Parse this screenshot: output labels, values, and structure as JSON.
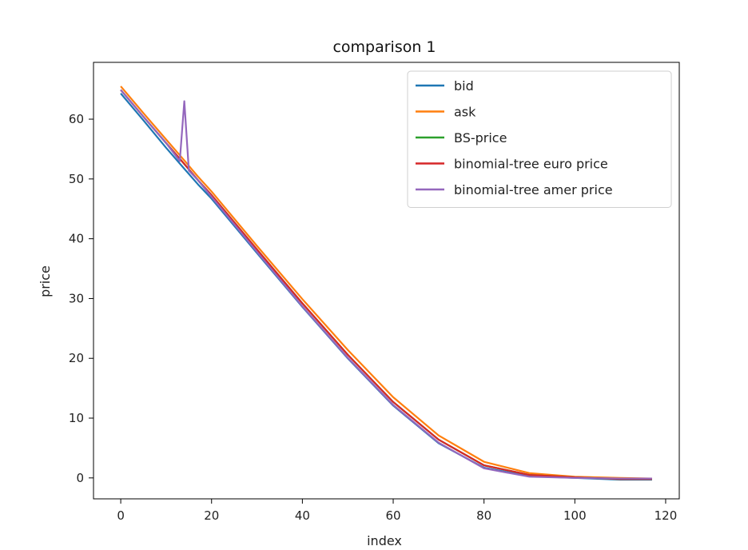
{
  "chart_data": {
    "type": "line",
    "title": "comparison 1",
    "xlabel": "index",
    "ylabel": "price",
    "xlim": [
      -6,
      123
    ],
    "ylim": [
      -3.5,
      69.5
    ],
    "xticks": [
      0,
      20,
      40,
      60,
      80,
      100,
      120
    ],
    "yticks": [
      0,
      10,
      20,
      30,
      40,
      50,
      60
    ],
    "grid": false,
    "legend_position": "top-right",
    "series": [
      {
        "name": "bid",
        "color": "#1f77b4",
        "points": [
          [
            0,
            64.3
          ],
          [
            5,
            59.8
          ],
          [
            10,
            55.2
          ],
          [
            14,
            51.7
          ],
          [
            17,
            49.1
          ],
          [
            20,
            46.7
          ],
          [
            30,
            37.6
          ],
          [
            40,
            28.6
          ],
          [
            50,
            20.0
          ],
          [
            60,
            12.1
          ],
          [
            70,
            5.8
          ],
          [
            80,
            1.7
          ],
          [
            90,
            0.3
          ],
          [
            100,
            0.0
          ],
          [
            110,
            -0.3
          ],
          [
            117,
            -0.3
          ]
        ]
      },
      {
        "name": "ask",
        "color": "#ff7f0e",
        "points": [
          [
            0,
            65.5
          ],
          [
            5,
            61.0
          ],
          [
            10,
            56.6
          ],
          [
            14,
            53.1
          ],
          [
            17,
            50.4
          ],
          [
            20,
            47.9
          ],
          [
            30,
            38.8
          ],
          [
            40,
            29.9
          ],
          [
            50,
            21.4
          ],
          [
            60,
            13.5
          ],
          [
            70,
            7.1
          ],
          [
            80,
            2.7
          ],
          [
            90,
            0.8
          ],
          [
            100,
            0.2
          ],
          [
            110,
            0.0
          ],
          [
            117,
            -0.1
          ]
        ]
      },
      {
        "name": "BS-price",
        "color": "#2ca02c",
        "points": [
          [
            0,
            64.9
          ],
          [
            5,
            60.4
          ],
          [
            10,
            56.0
          ],
          [
            14,
            52.5
          ],
          [
            17,
            49.8
          ],
          [
            20,
            47.3
          ],
          [
            30,
            38.2
          ],
          [
            40,
            29.2
          ],
          [
            50,
            20.6
          ],
          [
            60,
            12.7
          ],
          [
            70,
            6.4
          ],
          [
            80,
            2.1
          ],
          [
            90,
            0.5
          ],
          [
            100,
            0.1
          ],
          [
            110,
            -0.2
          ],
          [
            117,
            -0.2
          ]
        ]
      },
      {
        "name": "binomial-tree euro price",
        "color": "#d62728",
        "points": [
          [
            0,
            64.9
          ],
          [
            5,
            60.4
          ],
          [
            10,
            56.0
          ],
          [
            14,
            52.5
          ],
          [
            17,
            49.8
          ],
          [
            20,
            47.3
          ],
          [
            30,
            38.2
          ],
          [
            40,
            29.2
          ],
          [
            50,
            20.6
          ],
          [
            60,
            12.7
          ],
          [
            70,
            6.4
          ],
          [
            80,
            2.1
          ],
          [
            90,
            0.5
          ],
          [
            100,
            0.1
          ],
          [
            110,
            -0.2
          ],
          [
            117,
            -0.2
          ]
        ]
      },
      {
        "name": "binomial-tree amer price",
        "color": "#9467bd",
        "points": [
          [
            0,
            64.9
          ],
          [
            5,
            60.4
          ],
          [
            10,
            56.0
          ],
          [
            13,
            53.0
          ],
          [
            14,
            63.0
          ],
          [
            15,
            51.4
          ],
          [
            17,
            49.8
          ],
          [
            20,
            47.0
          ],
          [
            30,
            37.8
          ],
          [
            40,
            28.7
          ],
          [
            50,
            20.1
          ],
          [
            60,
            12.2
          ],
          [
            70,
            5.9
          ],
          [
            80,
            1.6
          ],
          [
            90,
            0.2
          ],
          [
            100,
            0.0
          ],
          [
            110,
            -0.1
          ],
          [
            117,
            -0.1
          ]
        ]
      }
    ]
  }
}
